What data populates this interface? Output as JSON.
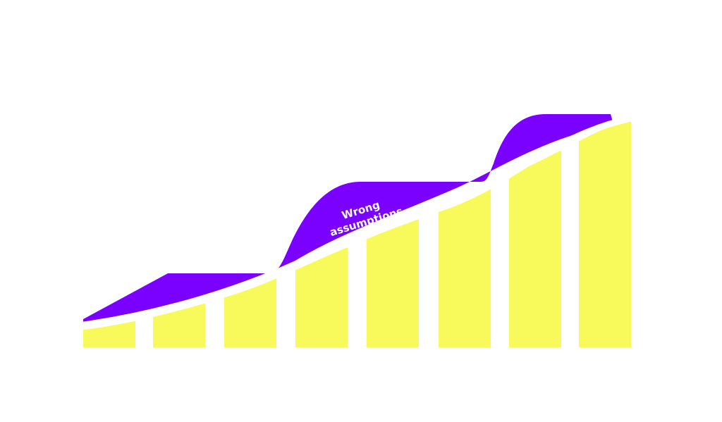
{
  "diagram": {
    "annotation": "Wrong assumptions",
    "annotation_lines": [
      "Wrong",
      "assumptions"
    ],
    "colors": {
      "bars": "#f8fa5c",
      "band": "#7a00ff",
      "separator": "#ffffff",
      "label": "#ffffff",
      "background": "#ffffff"
    },
    "bar_count": 8
  }
}
